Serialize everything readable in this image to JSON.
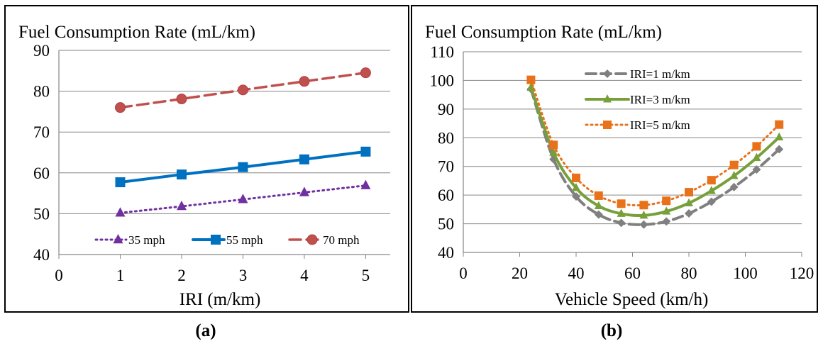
{
  "chart_data": [
    {
      "type": "line",
      "title": "Fuel Consumption Rate (mL/km)",
      "xlabel": "IRI (m/km)",
      "ylabel": "",
      "panel_label": "(a)",
      "xlim": [
        0,
        5.4
      ],
      "ylim": [
        40,
        90
      ],
      "x_ticks": [
        0,
        1,
        2,
        3,
        4,
        5
      ],
      "y_ticks": [
        40,
        50,
        60,
        70,
        80,
        90
      ],
      "grid": true,
      "legend_position": "bottom",
      "x": [
        1,
        2,
        3,
        4,
        5
      ],
      "series": [
        {
          "name": "35 mph",
          "values": [
            50.2,
            51.8,
            53.5,
            55.2,
            56.9
          ],
          "color": "#7030A0",
          "dash": "2,5",
          "width": 3,
          "marker": "triangle"
        },
        {
          "name": "55 mph",
          "values": [
            57.7,
            59.6,
            61.4,
            63.3,
            65.2
          ],
          "color": "#0070C0",
          "dash": "",
          "width": 4,
          "marker": "square"
        },
        {
          "name": "70 mph",
          "values": [
            76.0,
            78.1,
            80.3,
            82.4,
            84.5
          ],
          "color": "#C0504D",
          "dash": "16,8",
          "width": 3.5,
          "marker": "circle"
        }
      ]
    },
    {
      "type": "line",
      "title": "Fuel Consumption Rate (mL/km)",
      "xlabel": "Vehicle Speed (km/h)",
      "ylabel": "",
      "panel_label": "(b)",
      "xlim": [
        0,
        120
      ],
      "ylim": [
        40,
        110
      ],
      "x_ticks": [
        0,
        20,
        40,
        60,
        80,
        100,
        120
      ],
      "y_ticks": [
        40,
        50,
        60,
        70,
        80,
        90,
        100,
        110
      ],
      "grid": true,
      "legend_position": "top-center",
      "x": [
        24,
        32,
        40,
        48,
        56,
        64,
        72,
        80,
        88,
        96,
        104,
        112
      ],
      "series": [
        {
          "name": "IRI=1 m/km",
          "values": [
            97,
            72.5,
            59.5,
            53.2,
            50.3,
            49.7,
            50.8,
            53.6,
            57.7,
            62.8,
            68.9,
            76.0
          ],
          "color": "#808080",
          "dash": "14,7",
          "width": 4,
          "marker": "diamond"
        },
        {
          "name": "IRI=3 m/km",
          "values": [
            97.5,
            74.8,
            62.5,
            56.2,
            53.5,
            52.9,
            54.3,
            57.2,
            61.5,
            66.7,
            73.0,
            80.2
          ],
          "color": "#77A03A",
          "dash": "",
          "width": 4,
          "marker": "triangle"
        },
        {
          "name": "IRI=5 m/km",
          "values": [
            100.2,
            77.5,
            66.0,
            59.8,
            57.0,
            56.5,
            58.0,
            61.0,
            65.2,
            70.5,
            77.0,
            84.6
          ],
          "color": "#E8711A",
          "dash": "2,5",
          "width": 3,
          "marker": "square"
        }
      ]
    }
  ]
}
